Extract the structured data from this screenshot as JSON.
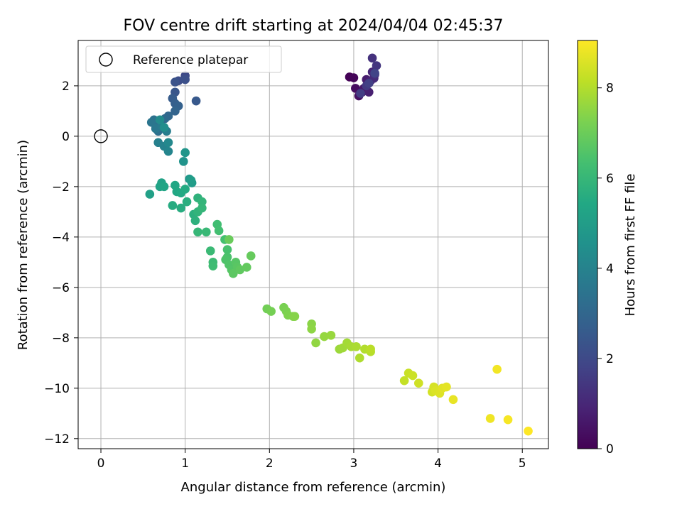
{
  "chart_data": {
    "type": "scatter",
    "title": "FOV centre drift starting at 2024/04/04 02:45:37",
    "xlabel": "Angular distance from reference (arcmin)",
    "ylabel": "Rotation from reference (arcmin)",
    "xlim": [
      -0.27,
      5.31
    ],
    "ylim": [
      -12.4,
      3.8
    ],
    "xticks": [
      0,
      1,
      2,
      3,
      4,
      5
    ],
    "yticks": [
      2,
      0,
      -2,
      -4,
      -6,
      -8,
      -10,
      -12
    ],
    "grid": true,
    "legend": {
      "placement": "top-left",
      "entries": [
        "Reference platepar"
      ]
    },
    "reference_point": {
      "x": 0,
      "y": 0,
      "label": "Reference platepar"
    },
    "colorbar": {
      "label": "Hours from first FF file",
      "min": 0,
      "max": 9.05,
      "ticks": [
        0,
        2,
        4,
        6,
        8
      ],
      "colormap": "viridis"
    },
    "series": [
      {
        "points": [
          [
            2.95,
            2.35,
            0.05
          ],
          [
            3.0,
            2.32,
            0.1
          ],
          [
            3.02,
            1.9,
            0.3
          ],
          [
            3.06,
            1.6,
            0.4
          ],
          [
            3.1,
            1.75,
            0.5
          ],
          [
            3.12,
            1.9,
            0.6
          ],
          [
            3.15,
            2.25,
            0.7
          ],
          [
            3.18,
            1.75,
            0.8
          ],
          [
            3.2,
            2.2,
            0.9
          ],
          [
            3.22,
            2.55,
            1.0
          ],
          [
            3.24,
            2.3,
            1.1
          ],
          [
            3.25,
            2.45,
            1.2
          ],
          [
            3.22,
            3.1,
            1.3
          ],
          [
            3.27,
            2.8,
            1.4
          ],
          [
            3.15,
            2.0,
            1.5
          ],
          [
            3.08,
            1.7,
            1.6
          ],
          [
            3.18,
            2.1,
            1.7
          ],
          [
            3.25,
            2.5,
            1.8
          ],
          [
            1.0,
            2.4,
            2.0
          ],
          [
            0.92,
            2.2,
            2.1
          ],
          [
            1.0,
            2.25,
            2.2
          ],
          [
            0.88,
            2.15,
            2.3
          ],
          [
            0.88,
            1.75,
            2.4
          ],
          [
            1.13,
            1.4,
            2.5
          ],
          [
            0.85,
            1.5,
            2.6
          ],
          [
            0.88,
            1.3,
            2.7
          ],
          [
            0.92,
            1.2,
            2.8
          ],
          [
            0.88,
            1.0,
            2.9
          ],
          [
            0.8,
            0.8,
            3.0
          ],
          [
            0.76,
            0.7,
            3.1
          ],
          [
            0.7,
            0.5,
            3.2
          ],
          [
            0.68,
            0.2,
            3.3
          ],
          [
            0.63,
            0.65,
            3.4
          ],
          [
            0.6,
            0.55,
            3.5
          ],
          [
            0.65,
            0.3,
            3.6
          ],
          [
            0.72,
            0.4,
            3.7
          ],
          [
            0.78,
            0.2,
            3.8
          ],
          [
            0.68,
            -0.25,
            3.9
          ],
          [
            0.75,
            -0.4,
            4.0
          ],
          [
            0.8,
            -0.6,
            4.1
          ],
          [
            0.8,
            -0.25,
            4.2
          ],
          [
            0.7,
            0.65,
            4.3
          ],
          [
            0.75,
            0.35,
            4.4
          ],
          [
            0.98,
            -1.0,
            4.6
          ],
          [
            1.0,
            -0.65,
            4.7
          ],
          [
            1.05,
            -1.7,
            4.8
          ],
          [
            1.08,
            -1.85,
            4.9
          ],
          [
            1.07,
            -1.75,
            5.0
          ],
          [
            0.58,
            -2.3,
            5.1
          ],
          [
            0.72,
            -1.85,
            5.2
          ],
          [
            0.7,
            -2.0,
            5.25
          ],
          [
            0.75,
            -2.0,
            5.3
          ],
          [
            0.88,
            -1.95,
            5.35
          ],
          [
            0.9,
            -2.2,
            5.4
          ],
          [
            0.95,
            -2.25,
            5.45
          ],
          [
            1.0,
            -2.1,
            5.5
          ],
          [
            0.85,
            -2.75,
            5.55
          ],
          [
            0.95,
            -2.85,
            5.6
          ],
          [
            1.02,
            -2.6,
            5.65
          ],
          [
            1.1,
            -3.1,
            5.7
          ],
          [
            1.12,
            -3.35,
            5.75
          ],
          [
            1.15,
            -2.45,
            5.8
          ],
          [
            1.15,
            -3.0,
            5.85
          ],
          [
            1.2,
            -2.6,
            5.9
          ],
          [
            1.2,
            -2.85,
            5.95
          ],
          [
            1.15,
            -3.8,
            6.0
          ],
          [
            1.25,
            -3.8,
            6.05
          ],
          [
            1.3,
            -4.55,
            6.1
          ],
          [
            1.33,
            -5.0,
            6.15
          ],
          [
            1.33,
            -5.15,
            6.2
          ],
          [
            1.38,
            -3.5,
            6.25
          ],
          [
            1.4,
            -3.75,
            6.3
          ],
          [
            1.47,
            -4.1,
            6.35
          ],
          [
            1.5,
            -4.5,
            6.4
          ],
          [
            1.5,
            -4.8,
            6.45
          ],
          [
            1.48,
            -4.9,
            6.5
          ],
          [
            1.52,
            -5.1,
            6.55
          ],
          [
            1.55,
            -5.3,
            6.6
          ],
          [
            1.6,
            -5.0,
            6.65
          ],
          [
            1.62,
            -5.2,
            6.7
          ],
          [
            1.57,
            -5.45,
            6.75
          ],
          [
            1.65,
            -5.3,
            6.8
          ],
          [
            1.73,
            -5.2,
            6.85
          ],
          [
            1.78,
            -4.75,
            6.9
          ],
          [
            1.52,
            -4.1,
            6.95
          ],
          [
            1.97,
            -6.85,
            7.1
          ],
          [
            2.02,
            -6.95,
            7.15
          ],
          [
            2.17,
            -6.8,
            7.2
          ],
          [
            2.2,
            -6.95,
            7.25
          ],
          [
            2.22,
            -7.1,
            7.3
          ],
          [
            2.28,
            -7.15,
            7.35
          ],
          [
            2.3,
            -7.15,
            7.4
          ],
          [
            2.5,
            -7.45,
            7.45
          ],
          [
            2.5,
            -7.65,
            7.5
          ],
          [
            2.55,
            -8.2,
            7.55
          ],
          [
            2.65,
            -7.95,
            7.6
          ],
          [
            2.73,
            -7.9,
            7.65
          ],
          [
            2.83,
            -8.45,
            7.7
          ],
          [
            2.87,
            -8.4,
            7.75
          ],
          [
            2.92,
            -8.2,
            7.8
          ],
          [
            2.97,
            -8.35,
            7.85
          ],
          [
            3.03,
            -8.35,
            7.9
          ],
          [
            3.07,
            -8.8,
            7.95
          ],
          [
            3.13,
            -8.45,
            8.0
          ],
          [
            3.2,
            -8.55,
            8.05
          ],
          [
            3.2,
            -8.45,
            8.1
          ],
          [
            3.6,
            -9.7,
            8.25
          ],
          [
            3.65,
            -9.4,
            8.3
          ],
          [
            3.7,
            -9.5,
            8.35
          ],
          [
            3.77,
            -9.8,
            8.4
          ],
          [
            3.93,
            -10.15,
            8.45
          ],
          [
            3.95,
            -9.95,
            8.5
          ],
          [
            3.97,
            -10.1,
            8.55
          ],
          [
            4.02,
            -10.2,
            8.6
          ],
          [
            4.05,
            -10.0,
            8.65
          ],
          [
            4.1,
            -9.95,
            8.7
          ],
          [
            4.18,
            -10.45,
            8.75
          ],
          [
            4.62,
            -11.2,
            8.85
          ],
          [
            4.7,
            -9.25,
            8.9
          ],
          [
            4.83,
            -11.25,
            8.95
          ],
          [
            5.07,
            -11.7,
            9.05
          ]
        ]
      }
    ]
  }
}
